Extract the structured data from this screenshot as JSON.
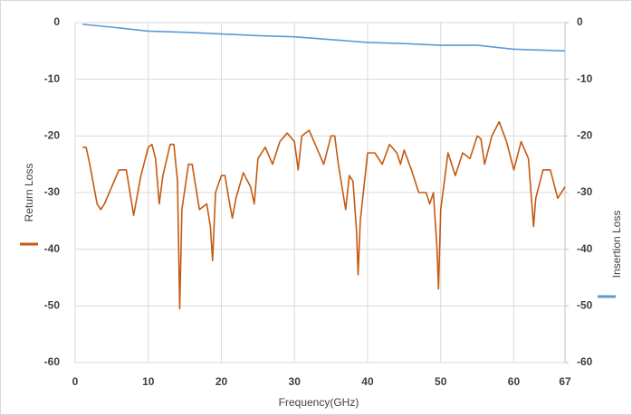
{
  "chart_data": {
    "type": "line",
    "xlabel": "Frequency(GHz)",
    "xlim": [
      0,
      67
    ],
    "xticks": [
      0,
      10,
      20,
      30,
      40,
      50,
      60,
      67
    ],
    "ylim": [
      -60,
      0
    ],
    "yticks": [
      0,
      -10,
      -20,
      -30,
      -40,
      -50,
      -60
    ],
    "y2lim": [
      -60,
      0
    ],
    "y2ticks": [
      0,
      -10,
      -20,
      -30,
      -40,
      -50,
      -60
    ],
    "grid": true,
    "series": [
      {
        "name": "Return Loss",
        "color": "#c55a11",
        "x": [
          1,
          1.5,
          2,
          3,
          3.5,
          4,
          5,
          6,
          7,
          7.5,
          8,
          9,
          10,
          10.5,
          11,
          11.5,
          12,
          13,
          13.5,
          14,
          14.3,
          14.6,
          15.5,
          16,
          17,
          18,
          18.5,
          18.8,
          19.2,
          20,
          20.5,
          21,
          21.5,
          22,
          23,
          24,
          24.5,
          25,
          26,
          27,
          28,
          29,
          30,
          30.5,
          31,
          32,
          33,
          34,
          35,
          35.5,
          36,
          37,
          37.5,
          38,
          38.5,
          38.7,
          39,
          40,
          41,
          42,
          43,
          44,
          44.5,
          45,
          46,
          47,
          48,
          48.5,
          49,
          49.5,
          49.7,
          50,
          51,
          52,
          53,
          54,
          55,
          55.5,
          56,
          57,
          58,
          59,
          60,
          61,
          62,
          62.7,
          63,
          64,
          65,
          66,
          67
        ],
        "values": [
          -22,
          -22,
          -25,
          -32,
          -33,
          -32,
          -29,
          -26,
          -26,
          -30,
          -34,
          -27,
          -22,
          -21.5,
          -24,
          -32,
          -27,
          -21.5,
          -21.5,
          -28,
          -50.5,
          -33,
          -25,
          -25,
          -33,
          -32,
          -36,
          -42,
          -30,
          -27,
          -27,
          -31,
          -34.5,
          -31,
          -26.5,
          -29,
          -32,
          -24,
          -22,
          -25,
          -21,
          -19.5,
          -21,
          -26,
          -20,
          -19,
          -22,
          -25,
          -20,
          -20,
          -25,
          -33,
          -27,
          -28,
          -37,
          -44.5,
          -35,
          -23,
          -23,
          -25,
          -21.5,
          -23,
          -25,
          -22.5,
          -26,
          -30,
          -30,
          -32,
          -30,
          -40,
          -47,
          -33,
          -23,
          -27,
          -23,
          -24,
          -20,
          -20.5,
          -25,
          -20,
          -17.5,
          -21,
          -26,
          -21,
          -24,
          -36,
          -31,
          -26,
          -26,
          -31,
          -29
        ],
        "axis": "y"
      },
      {
        "name": "Insertion Loss",
        "color": "#5b9bd5",
        "x": [
          1,
          5,
          10,
          15,
          20,
          25,
          30,
          35,
          40,
          45,
          50,
          55,
          60,
          67
        ],
        "values": [
          -0.3,
          -0.8,
          -1.5,
          -1.7,
          -2,
          -2.3,
          -2.5,
          -3,
          -3.5,
          -3.7,
          -4,
          -4,
          -4.7,
          -5
        ],
        "axis": "y2"
      }
    ]
  }
}
